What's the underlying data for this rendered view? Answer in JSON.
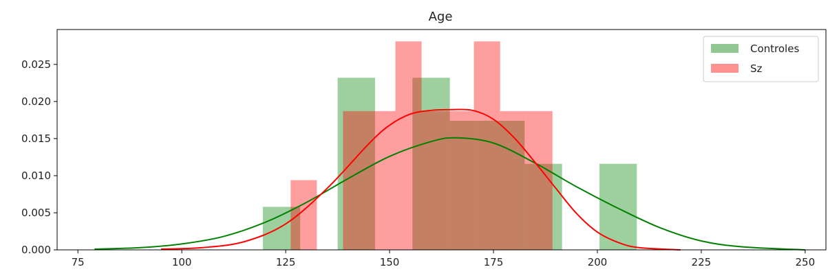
{
  "chart_data": {
    "type": "histogram",
    "title": "Age",
    "xlabel": "",
    "ylabel": "",
    "xlim": [
      70,
      255
    ],
    "ylim": [
      0,
      0.0297
    ],
    "xticks": [
      75,
      100,
      125,
      150,
      175,
      200,
      225,
      250
    ],
    "xtick_labels": [
      "75",
      "100",
      "125",
      "150",
      "175",
      "200",
      "225",
      "250"
    ],
    "yticks": [
      0,
      0.005,
      0.01,
      0.015,
      0.02,
      0.025
    ],
    "ytick_labels": [
      "0.000",
      "0.005",
      "0.010",
      "0.015",
      "0.020",
      "0.025"
    ],
    "grid": false,
    "legend_position": "top-right",
    "series": [
      {
        "name": "Controles",
        "color": "#008000",
        "bar_alpha": 0.38,
        "bins": [
          {
            "x0": 119.5,
            "x1": 128.5,
            "density": 0.0058
          },
          {
            "x0": 128.5,
            "x1": 137.5,
            "density": 0.0
          },
          {
            "x0": 137.5,
            "x1": 146.5,
            "density": 0.0232
          },
          {
            "x0": 146.5,
            "x1": 155.5,
            "density": 0.0
          },
          {
            "x0": 155.5,
            "x1": 164.5,
            "density": 0.0232
          },
          {
            "x0": 164.5,
            "x1": 173.5,
            "density": 0.0174
          },
          {
            "x0": 173.5,
            "x1": 182.5,
            "density": 0.0174
          },
          {
            "x0": 182.5,
            "x1": 191.5,
            "density": 0.0116
          },
          {
            "x0": 191.5,
            "x1": 200.5,
            "density": 0.0
          },
          {
            "x0": 200.5,
            "x1": 209.5,
            "density": 0.0116
          }
        ],
        "kde": {
          "x": [
            79,
            90,
            100,
            110,
            120,
            130,
            140,
            150,
            160,
            166,
            175,
            185,
            195,
            205,
            215,
            225,
            235,
            250
          ],
          "y": [
            0.0001,
            0.0003,
            0.0008,
            0.0018,
            0.0037,
            0.0064,
            0.0096,
            0.0126,
            0.0146,
            0.0151,
            0.0144,
            0.0117,
            0.0085,
            0.0056,
            0.003,
            0.0012,
            0.0004,
            0.0
          ]
        }
      },
      {
        "name": "Sz",
        "color": "#ff0000",
        "bar_alpha": 0.38,
        "bins": [
          {
            "x0": 126.2,
            "x1": 132.5,
            "density": 0.0094
          },
          {
            "x0": 132.5,
            "x1": 138.8,
            "density": 0.0
          },
          {
            "x0": 138.8,
            "x1": 145.1,
            "density": 0.0187
          },
          {
            "x0": 145.1,
            "x1": 151.4,
            "density": 0.0187
          },
          {
            "x0": 151.4,
            "x1": 157.7,
            "density": 0.0281
          },
          {
            "x0": 157.7,
            "x1": 164.0,
            "density": 0.0187
          },
          {
            "x0": 164.0,
            "x1": 170.3,
            "density": 0.0187
          },
          {
            "x0": 170.3,
            "x1": 176.6,
            "density": 0.0281
          },
          {
            "x0": 176.6,
            "x1": 182.9,
            "density": 0.0187
          },
          {
            "x0": 182.9,
            "x1": 189.2,
            "density": 0.0187
          }
        ],
        "kde": {
          "x": [
            95,
            105,
            115,
            125,
            135,
            145,
            150,
            155,
            160,
            165,
            170,
            175,
            180,
            185,
            190,
            195,
            200,
            205,
            210,
            220
          ],
          "y": [
            0.0001,
            0.0003,
            0.0011,
            0.0035,
            0.0083,
            0.0143,
            0.0168,
            0.0183,
            0.0188,
            0.0189,
            0.0188,
            0.0176,
            0.0151,
            0.0118,
            0.0083,
            0.0049,
            0.0024,
            0.001,
            0.0003,
            0.0
          ]
        }
      }
    ]
  }
}
